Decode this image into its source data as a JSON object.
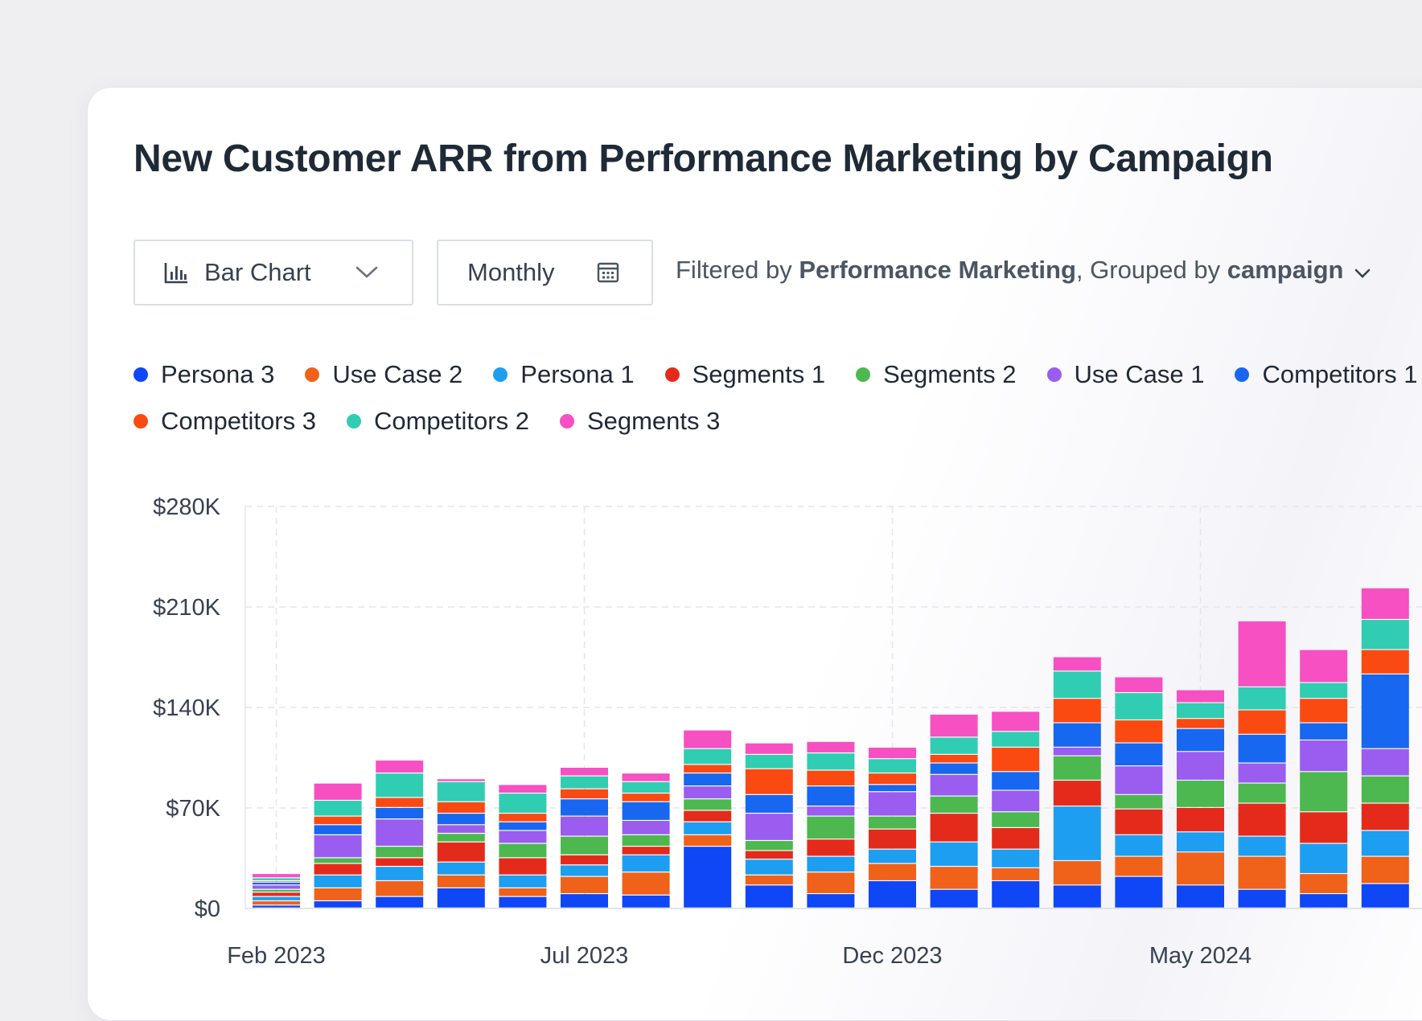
{
  "title": "New Customer ARR from Performance Marketing by Campaign",
  "controls": {
    "chart_type": "Bar Chart",
    "period": "Monthly",
    "filter_prefix": "Filtered by ",
    "filter_value": "Performance Marketing",
    "group_prefix": ", Grouped by ",
    "group_value": "campaign"
  },
  "icons": {
    "chart_type": "bar-chart-icon",
    "chart_type_menu": "chevron-down-icon",
    "period": "calendar-icon",
    "filter_menu": "chevron-down-icon"
  },
  "chart_data": {
    "type": "bar",
    "stacked": true,
    "ylim": [
      0,
      280000
    ],
    "yticks": [
      0,
      70000,
      140000,
      210000,
      280000
    ],
    "ytick_labels": [
      "$0",
      "$70K",
      "$140K",
      "$210K",
      "$280K"
    ],
    "xtick_labels": [
      {
        "index": 0,
        "label": "Feb 2023"
      },
      {
        "index": 5,
        "label": "Jul 2023"
      },
      {
        "index": 10,
        "label": "Dec 2023"
      },
      {
        "index": 15,
        "label": "May 2024"
      }
    ],
    "grid": true,
    "legend_position": "top",
    "categories": [
      "2023-02",
      "2023-03",
      "2023-04",
      "2023-05",
      "2023-06",
      "2023-07",
      "2023-08",
      "2023-09",
      "2023-10",
      "2023-11",
      "2023-12",
      "2024-01",
      "2024-02",
      "2024-03",
      "2024-04",
      "2024-05",
      "2024-06",
      "2024-07",
      "2024-08"
    ],
    "series": [
      {
        "name": "Persona 3",
        "color": "#0f46f5",
        "values": [
          2000,
          5000,
          8000,
          14000,
          8000,
          10000,
          9000,
          43000,
          16000,
          10000,
          19000,
          13000,
          19000,
          16000,
          22000,
          16000,
          13000,
          10000,
          17000
        ]
      },
      {
        "name": "Use Case 2",
        "color": "#f0611a",
        "values": [
          3000,
          9000,
          11000,
          9000,
          6000,
          12000,
          16000,
          8000,
          7000,
          15000,
          12000,
          16000,
          9000,
          17000,
          14000,
          23000,
          23000,
          14000,
          19000
        ]
      },
      {
        "name": "Persona 1",
        "color": "#1d9ef0",
        "values": [
          3000,
          9000,
          10000,
          9000,
          9000,
          8000,
          12000,
          9000,
          11000,
          11000,
          10000,
          17000,
          13000,
          38000,
          15000,
          14000,
          14000,
          21000,
          18000
        ]
      },
      {
        "name": "Segments 1",
        "color": "#e42b1b",
        "values": [
          3000,
          8000,
          6000,
          14000,
          12000,
          7000,
          6000,
          8000,
          6000,
          12000,
          14000,
          20000,
          15000,
          18000,
          18000,
          17000,
          23000,
          22000,
          19000
        ]
      },
      {
        "name": "Segments 2",
        "color": "#4cb84f",
        "values": [
          2000,
          4000,
          8000,
          6000,
          10000,
          13000,
          8000,
          8000,
          7000,
          16000,
          9000,
          12000,
          11000,
          17000,
          10000,
          19000,
          14000,
          28000,
          19000
        ]
      },
      {
        "name": "Use Case 1",
        "color": "#9b5cf0",
        "values": [
          3000,
          16000,
          19000,
          6000,
          9000,
          14000,
          10000,
          9000,
          19000,
          7000,
          17000,
          15000,
          15000,
          6000,
          20000,
          20000,
          14000,
          22000,
          19000
        ]
      },
      {
        "name": "Competitors 1",
        "color": "#1767f0",
        "values": [
          2000,
          7000,
          8000,
          8000,
          6000,
          12000,
          13000,
          9000,
          13000,
          14000,
          5000,
          8000,
          13000,
          17000,
          16000,
          16000,
          20000,
          12000,
          52000
        ]
      },
      {
        "name": "Competitors 3",
        "color": "#fa4a12",
        "values": [
          1000,
          6000,
          7000,
          8000,
          6000,
          7000,
          6000,
          6000,
          18000,
          11000,
          8000,
          6000,
          17000,
          17000,
          16000,
          7000,
          17000,
          17000,
          17000
        ]
      },
      {
        "name": "Competitors 2",
        "color": "#30cdb3",
        "values": [
          2000,
          11000,
          17000,
          14000,
          14000,
          9000,
          8000,
          11000,
          10000,
          12000,
          10000,
          12000,
          11000,
          19000,
          19000,
          11000,
          16000,
          11000,
          21000
        ]
      },
      {
        "name": "Segments 3",
        "color": "#f650c2",
        "values": [
          3000,
          12000,
          9000,
          2000,
          6000,
          6000,
          6000,
          13000,
          8000,
          8000,
          8000,
          16000,
          14000,
          10000,
          11000,
          9000,
          46000,
          23000,
          22000
        ]
      }
    ]
  }
}
